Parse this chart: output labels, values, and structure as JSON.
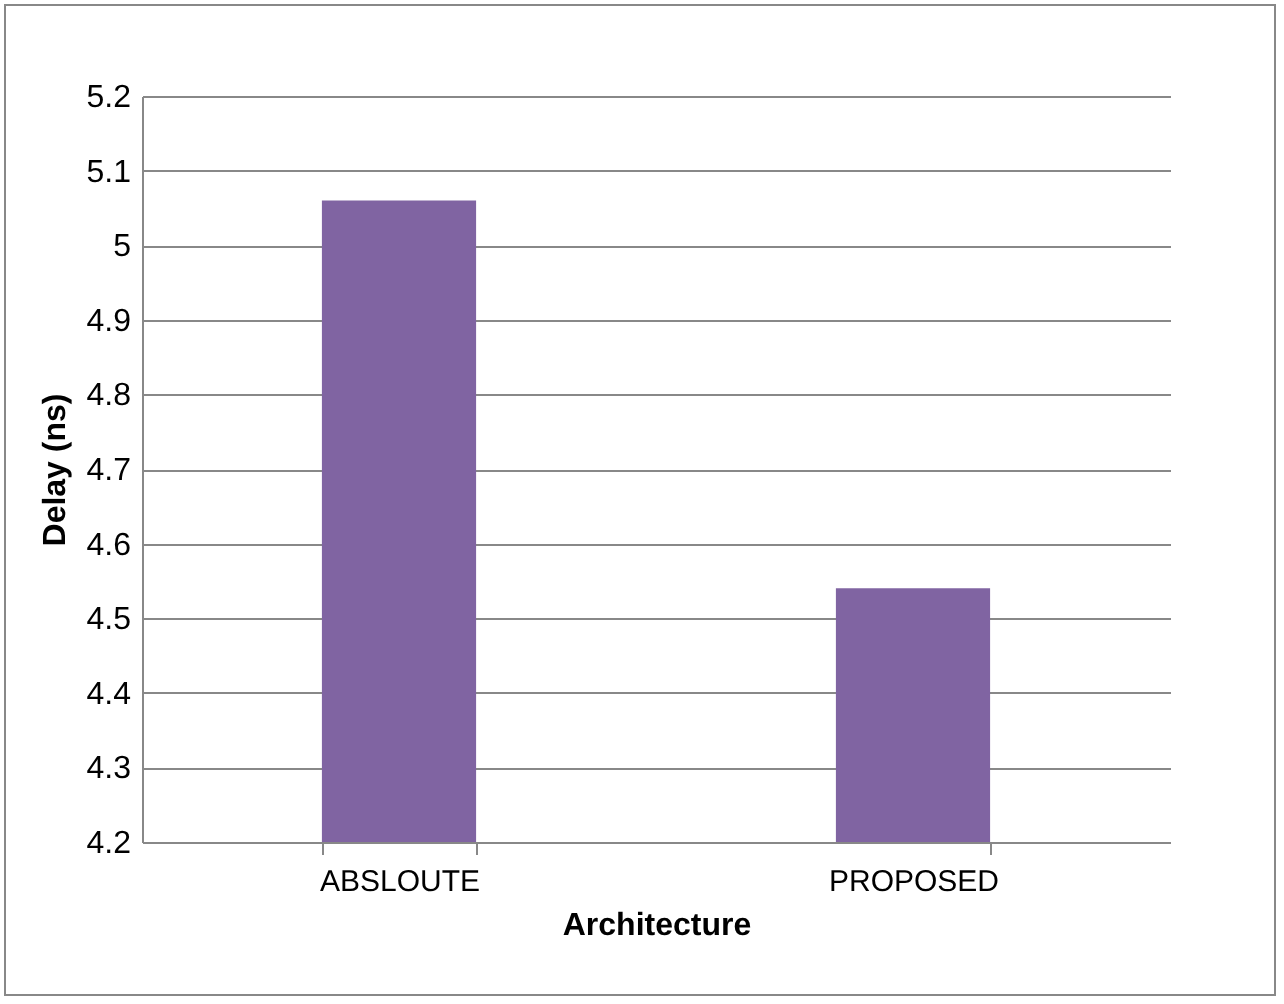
{
  "chart_data": {
    "type": "bar",
    "xlabel": "Architecture",
    "ylabel": "Delay (ns)",
    "categories": [
      "ABSLOUTE",
      "PROPOSED"
    ],
    "values": [
      5.06,
      4.54
    ],
    "color": "#8064a2",
    "ylim": [
      4.2,
      5.2
    ],
    "yticks": [
      4.2,
      4.3,
      4.4,
      4.5,
      4.6,
      4.7,
      4.8,
      4.9,
      5,
      5.1,
      5.2
    ],
    "grid": "y"
  }
}
